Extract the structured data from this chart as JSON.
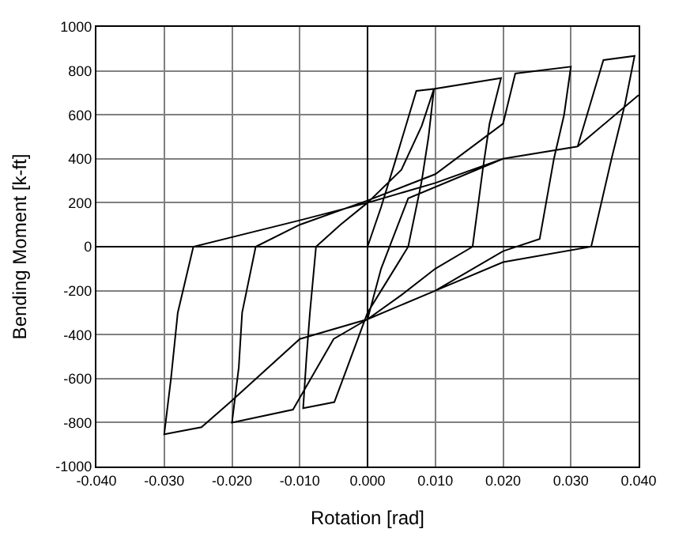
{
  "chart_data": {
    "type": "line",
    "xlabel": "Rotation [rad]",
    "ylabel": "Bending Moment [k-ft]",
    "series": [
      {
        "color": "#000000",
        "x": [
          0,
          0.002,
          0.004,
          0.0072,
          0.0098,
          0.009,
          0.008,
          0.006,
          0.002,
          0,
          -0.003,
          -0.0049,
          -0.0095,
          -0.009,
          -0.0085,
          -0.0076,
          -0.004,
          0,
          0.005,
          0.008,
          0.0098,
          0.0197,
          0.018,
          0.017,
          0.0155,
          0.01,
          0.005,
          0,
          -0.005,
          -0.011,
          -0.02,
          -0.019,
          -0.0185,
          -0.0165,
          -0.01,
          0,
          0.01,
          0.02,
          0.0218,
          0.03,
          0.029,
          0.0275,
          0.0254,
          0.02,
          0.01,
          0,
          -0.01,
          -0.02,
          -0.0245,
          -0.03,
          -0.029,
          -0.028,
          -0.0257,
          -0.01,
          0,
          0.01,
          0.02,
          0.031,
          0.0348,
          0.0394,
          0.038,
          0.036,
          0.033,
          0.02,
          0.01,
          0,
          0.002,
          0.006,
          0.02,
          0.031,
          0.04
        ],
        "values": [
          0,
          180,
          380,
          709,
          718,
          500,
          300,
          0,
          -200,
          -300,
          -550,
          -707,
          -735,
          -500,
          -300,
          0,
          100,
          200,
          350,
          550,
          718,
          767,
          560,
          350,
          0,
          -100,
          -220,
          -330,
          -420,
          -741,
          -800,
          -550,
          -300,
          0,
          100,
          210,
          330,
          560,
          788,
          819,
          600,
          400,
          35,
          -20,
          -200,
          -330,
          -420,
          -700,
          -821,
          -853,
          -600,
          -300,
          0,
          120,
          200,
          290,
          400,
          456,
          849,
          868,
          650,
          400,
          0,
          -70,
          -200,
          -330,
          -100,
          220,
          400,
          456,
          690
        ]
      }
    ],
    "xlim": [
      -0.04,
      0.04
    ],
    "ylim": [
      -1000,
      1000
    ],
    "xticks": [
      {
        "value": -0.04,
        "label": "-0.040"
      },
      {
        "value": -0.03,
        "label": "-0.030"
      },
      {
        "value": -0.02,
        "label": "-0.020"
      },
      {
        "value": -0.01,
        "label": "-0.010"
      },
      {
        "value": 0,
        "label": "0.000"
      },
      {
        "value": 0.01,
        "label": "0.010"
      },
      {
        "value": 0.02,
        "label": "0.020"
      },
      {
        "value": 0.03,
        "label": "0.030"
      },
      {
        "value": 0.04,
        "label": "0.040"
      }
    ],
    "yticks": [
      -1000,
      -800,
      -600,
      -400,
      -200,
      0,
      200,
      400,
      600,
      800,
      1000
    ],
    "grid": true,
    "marker": "none",
    "line_style": "solid"
  }
}
